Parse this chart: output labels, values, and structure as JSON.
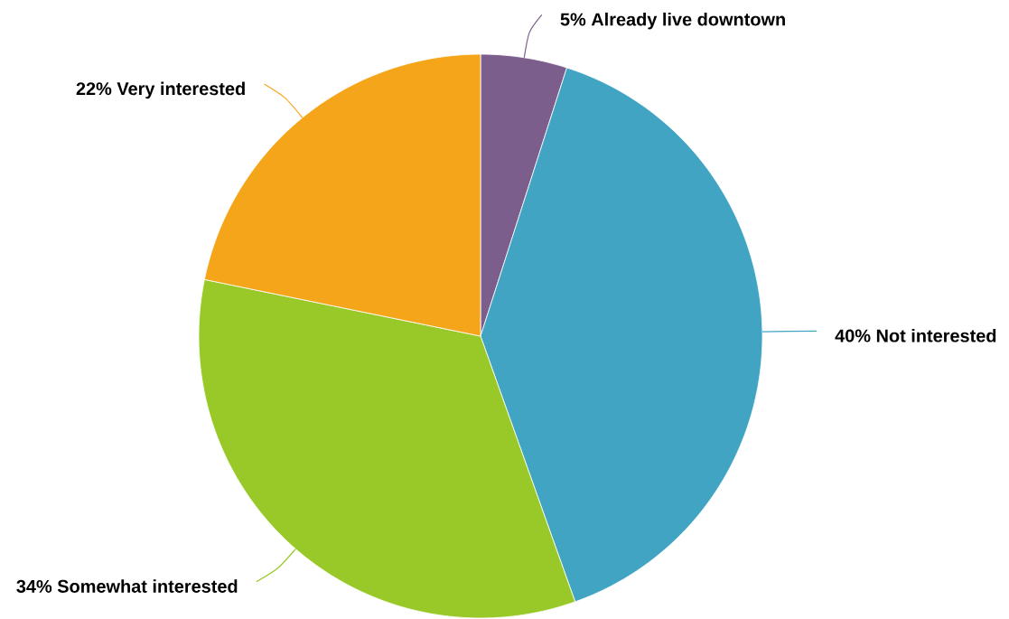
{
  "chart_data": {
    "type": "pie",
    "categories": [
      "Already live downtown",
      "Not interested",
      "Somewhat interested",
      "Very interested"
    ],
    "values": [
      5,
      40,
      34,
      22
    ],
    "value_labels": [
      "5%",
      "40%",
      "34%",
      "22%"
    ],
    "colors": [
      "#7b5e8c",
      "#41a4c3",
      "#98c928",
      "#f5a51a"
    ]
  }
}
